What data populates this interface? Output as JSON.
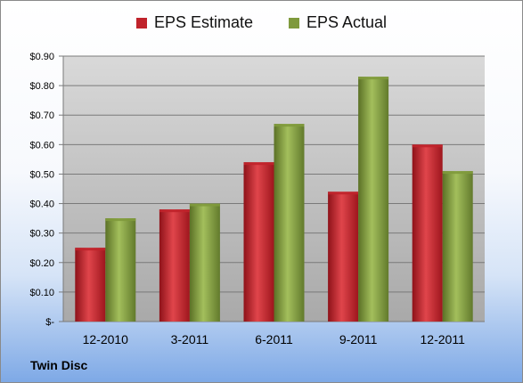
{
  "chart_data": {
    "type": "bar",
    "categories": [
      "12-2010",
      "3-2011",
      "6-2011",
      "9-2011",
      "12-2011"
    ],
    "series": [
      {
        "name": "EPS Estimate",
        "values": [
          0.25,
          0.38,
          0.54,
          0.44,
          0.6
        ],
        "color": "#c0232b"
      },
      {
        "name": "EPS Actual",
        "values": [
          0.35,
          0.4,
          0.67,
          0.83,
          0.51
        ],
        "color": "#7f9a3c"
      }
    ],
    "y_ticks": [
      0,
      0.1,
      0.2,
      0.3,
      0.4,
      0.5,
      0.6,
      0.7,
      0.8,
      0.9
    ],
    "y_tick_labels": [
      "$-",
      "$0.10",
      "$0.20",
      "$0.30",
      "$0.40",
      "$0.50",
      "$0.60",
      "$0.70",
      "$0.80",
      "$0.90"
    ],
    "ylim": [
      0,
      0.9
    ],
    "grid": true,
    "legend_position": "top"
  },
  "legend": {
    "estimate_label": "EPS Estimate",
    "actual_label": "EPS Actual"
  },
  "footer": {
    "company": "Twin Disc"
  }
}
